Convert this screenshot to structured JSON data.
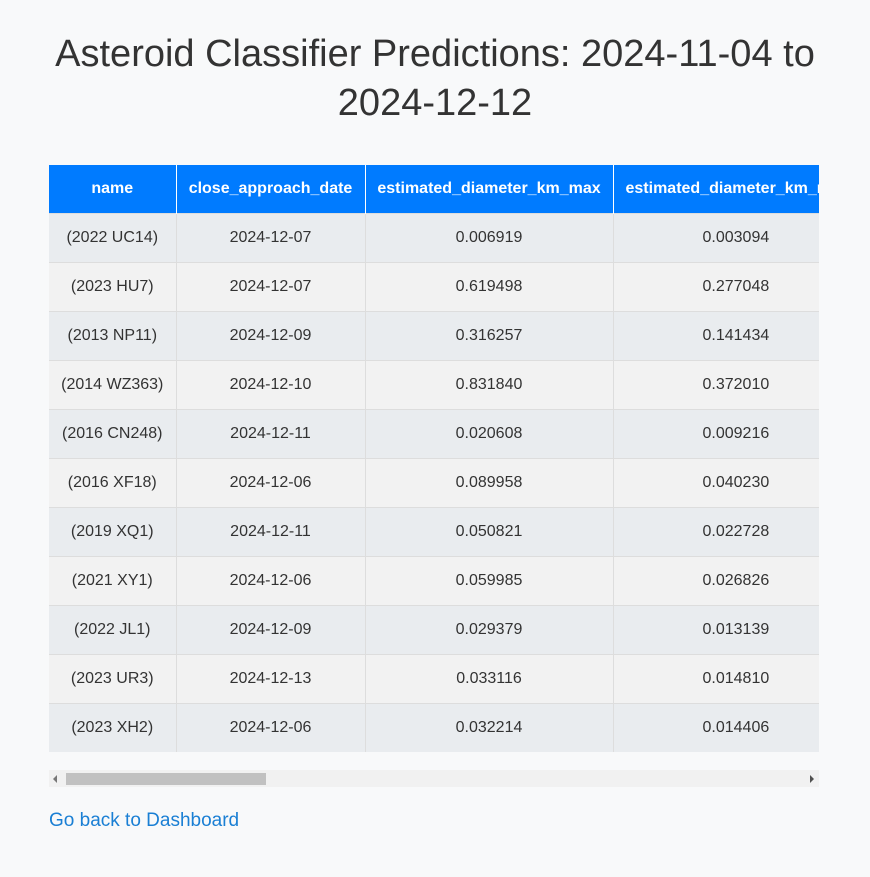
{
  "page": {
    "title": "Asteroid Classifier Predictions: 2024-11-04 to 2024-12-12",
    "back_link": "Go back to Dashboard"
  },
  "table": {
    "headers": [
      "name",
      "close_approach_date",
      "estimated_diameter_km_max",
      "estimated_diameter_km_min"
    ],
    "rows": [
      [
        "(2022 UC14)",
        "2024-12-07",
        "0.006919",
        "0.003094"
      ],
      [
        "(2023 HU7)",
        "2024-12-07",
        "0.619498",
        "0.277048"
      ],
      [
        "(2013 NP11)",
        "2024-12-09",
        "0.316257",
        "0.141434"
      ],
      [
        "(2014 WZ363)",
        "2024-12-10",
        "0.831840",
        "0.372010"
      ],
      [
        "(2016 CN248)",
        "2024-12-11",
        "0.020608",
        "0.009216"
      ],
      [
        "(2016 XF18)",
        "2024-12-06",
        "0.089958",
        "0.040230"
      ],
      [
        "(2019 XQ1)",
        "2024-12-11",
        "0.050821",
        "0.022728"
      ],
      [
        "(2021 XY1)",
        "2024-12-06",
        "0.059985",
        "0.026826"
      ],
      [
        "(2022 JL1)",
        "2024-12-09",
        "0.029379",
        "0.013139"
      ],
      [
        "(2023 UR3)",
        "2024-12-13",
        "0.033116",
        "0.014810"
      ],
      [
        "(2023 XH2)",
        "2024-12-06",
        "0.032214",
        "0.014406"
      ]
    ]
  },
  "colors": {
    "header_bg": "#007bff",
    "link": "#1a7fd4",
    "page_bg": "#f8f9fa"
  },
  "icons": {
    "scroll_left": "scroll-left-arrow-icon",
    "scroll_right": "scroll-right-arrow-icon"
  }
}
